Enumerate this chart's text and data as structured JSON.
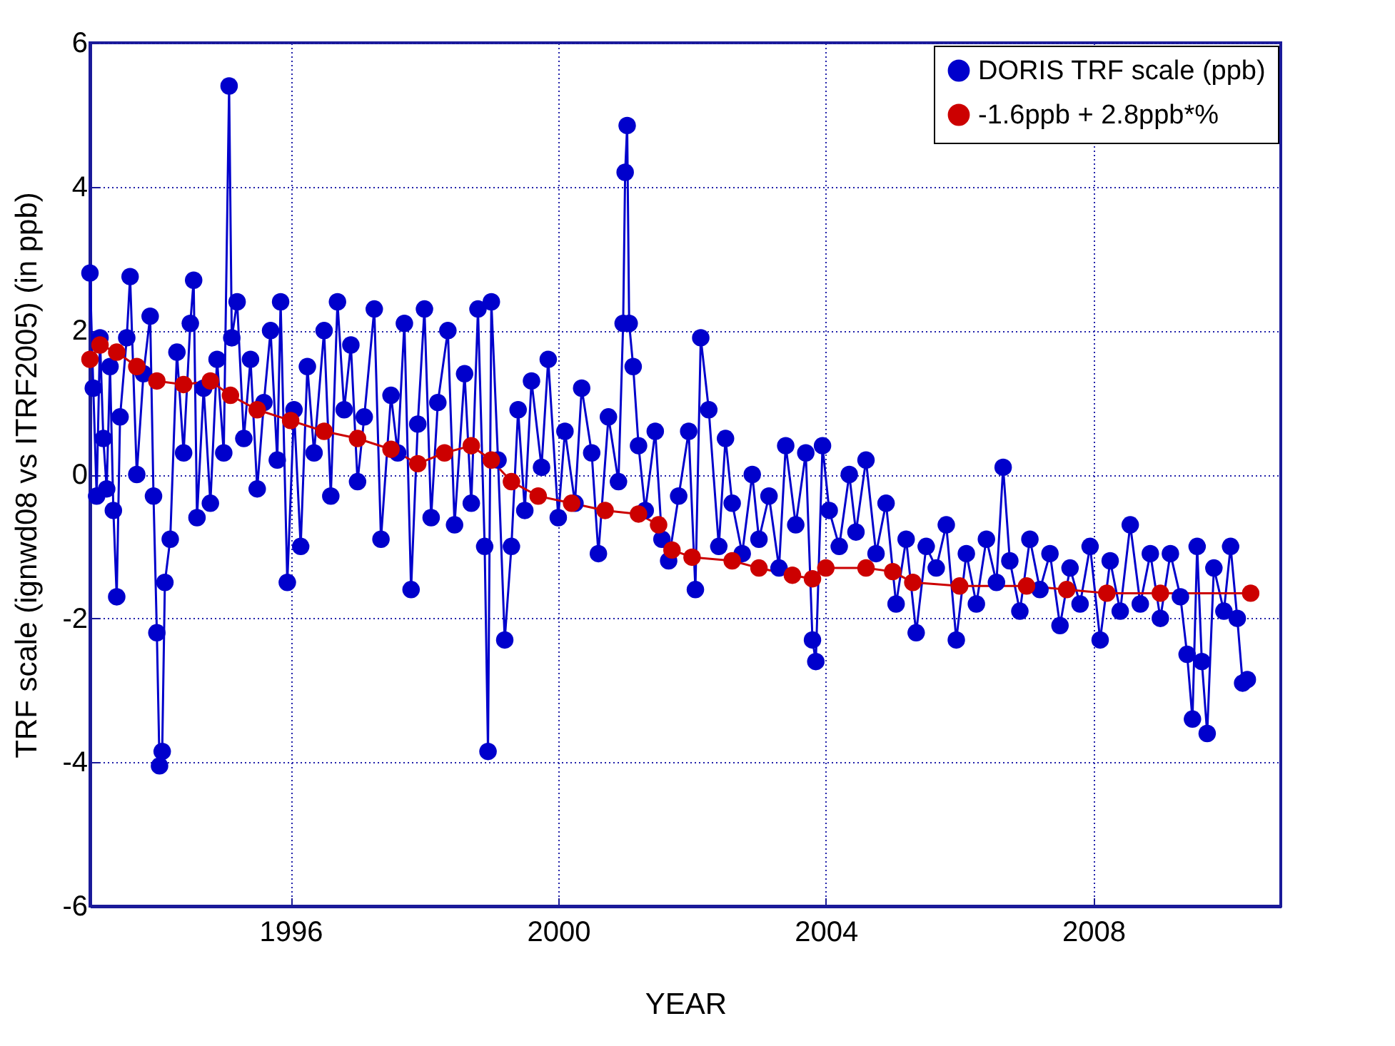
{
  "chart_data": {
    "type": "line",
    "xlabel": "YEAR",
    "ylabel": "TRF scale (ignwd08 vs ITRF2005) (in ppb)",
    "xlim": [
      1993,
      2010.8
    ],
    "xticks": [
      1996,
      2000,
      2004,
      2008
    ],
    "ylim": [
      -6,
      6
    ],
    "yticks": [
      -6,
      -4,
      -2,
      0,
      2,
      4,
      6
    ],
    "grid": true,
    "legend": "top right",
    "marker": "circle",
    "line_style": "solid",
    "series": [
      {
        "name": "DORIS TRF scale (ppb)",
        "color": "#0000cc",
        "x": [
          1993.0,
          1993.05,
          1993.1,
          1993.15,
          1993.2,
          1993.25,
          1993.3,
          1993.35,
          1993.4,
          1993.45,
          1993.55,
          1993.6,
          1993.7,
          1993.8,
          1993.9,
          1993.95,
          1994.0,
          1994.04,
          1994.08,
          1994.12,
          1994.2,
          1994.3,
          1994.4,
          1994.5,
          1994.55,
          1994.6,
          1994.7,
          1994.8,
          1994.9,
          1995.0,
          1995.08,
          1995.12,
          1995.2,
          1995.3,
          1995.4,
          1995.5,
          1995.6,
          1995.7,
          1995.8,
          1995.85,
          1995.95,
          1996.05,
          1996.15,
          1996.25,
          1996.35,
          1996.5,
          1996.6,
          1996.7,
          1996.8,
          1996.9,
          1997.0,
          1997.1,
          1997.25,
          1997.35,
          1997.5,
          1997.6,
          1997.7,
          1997.8,
          1997.9,
          1998.0,
          1998.1,
          1998.2,
          1998.35,
          1998.45,
          1998.6,
          1998.7,
          1998.8,
          1998.9,
          1998.95,
          1999.0,
          1999.1,
          1999.2,
          1999.3,
          1999.4,
          1999.5,
          1999.6,
          1999.75,
          1999.85,
          2000.0,
          2000.1,
          2000.25,
          2000.35,
          2000.5,
          2000.6,
          2000.75,
          2000.9,
          2000.97,
          2001.0,
          2001.03,
          2001.06,
          2001.12,
          2001.2,
          2001.3,
          2001.45,
          2001.55,
          2001.65,
          2001.8,
          2001.95,
          2002.05,
          2002.13,
          2002.25,
          2002.4,
          2002.5,
          2002.6,
          2002.75,
          2002.9,
          2003.0,
          2003.15,
          2003.3,
          2003.4,
          2003.55,
          2003.7,
          2003.8,
          2003.85,
          2003.95,
          2004.05,
          2004.2,
          2004.35,
          2004.45,
          2004.6,
          2004.75,
          2004.9,
          2005.05,
          2005.2,
          2005.35,
          2005.5,
          2005.65,
          2005.8,
          2005.95,
          2006.1,
          2006.25,
          2006.4,
          2006.55,
          2006.65,
          2006.75,
          2006.9,
          2007.05,
          2007.2,
          2007.35,
          2007.5,
          2007.65,
          2007.8,
          2007.95,
          2008.1,
          2008.25,
          2008.4,
          2008.55,
          2008.7,
          2008.85,
          2009.0,
          2009.15,
          2009.3,
          2009.4,
          2009.48,
          2009.55,
          2009.62,
          2009.7,
          2009.8,
          2009.95,
          2010.05,
          2010.15,
          2010.23,
          2010.3
        ],
        "values": [
          2.8,
          1.2,
          -0.3,
          1.9,
          0.5,
          -0.2,
          1.5,
          -0.5,
          -1.7,
          0.8,
          1.9,
          2.75,
          0.0,
          1.4,
          2.2,
          -0.3,
          -2.2,
          -4.05,
          -3.85,
          -1.5,
          -0.9,
          1.7,
          0.3,
          2.1,
          2.7,
          -0.6,
          1.2,
          -0.4,
          1.6,
          0.3,
          5.4,
          1.9,
          2.4,
          0.5,
          1.6,
          -0.2,
          1.0,
          2.0,
          0.2,
          2.4,
          -1.5,
          0.9,
          -1.0,
          1.5,
          0.3,
          2.0,
          -0.3,
          2.4,
          0.9,
          1.8,
          -0.1,
          0.8,
          2.3,
          -0.9,
          1.1,
          0.3,
          2.1,
          -1.6,
          0.7,
          2.3,
          -0.6,
          1.0,
          2.0,
          -0.7,
          1.4,
          -0.4,
          2.3,
          -1.0,
          -3.85,
          2.4,
          0.2,
          -2.3,
          -1.0,
          0.9,
          -0.5,
          1.3,
          0.1,
          1.6,
          -0.6,
          0.6,
          -0.4,
          1.2,
          0.3,
          -1.1,
          0.8,
          -0.1,
          2.1,
          4.2,
          4.85,
          2.1,
          1.5,
          0.4,
          -0.5,
          0.6,
          -0.9,
          -1.2,
          -0.3,
          0.6,
          -1.6,
          1.9,
          0.9,
          -1.0,
          0.5,
          -0.4,
          -1.1,
          0.0,
          -0.9,
          -0.3,
          -1.3,
          0.4,
          -0.7,
          0.3,
          -2.3,
          -2.6,
          0.4,
          -0.5,
          -1.0,
          0.0,
          -0.8,
          0.2,
          -1.1,
          -0.4,
          -1.8,
          -0.9,
          -2.2,
          -1.0,
          -1.3,
          -0.7,
          -2.3,
          -1.1,
          -1.8,
          -0.9,
          -1.5,
          0.1,
          -1.2,
          -1.9,
          -0.9,
          -1.6,
          -1.1,
          -2.1,
          -1.3,
          -1.8,
          -1.0,
          -2.3,
          -1.2,
          -1.9,
          -0.7,
          -1.8,
          -1.1,
          -2.0,
          -1.1,
          -1.7,
          -2.5,
          -3.4,
          -1.0,
          -2.6,
          -3.6,
          -1.3,
          -1.9,
          -1.0,
          -2.0,
          -2.9,
          -2.85
        ]
      },
      {
        "name": "-1.6ppb + 2.8ppb*%",
        "color": "#cc0000",
        "x": [
          1993.0,
          1993.15,
          1993.4,
          1993.7,
          1994.0,
          1994.4,
          1994.8,
          1995.1,
          1995.5,
          1996.0,
          1996.5,
          1997.0,
          1997.5,
          1997.9,
          1998.3,
          1998.7,
          1999.0,
          1999.3,
          1999.7,
          2000.2,
          2000.7,
          2001.2,
          2001.5,
          2001.7,
          2002.0,
          2002.6,
          2003.0,
          2003.5,
          2003.8,
          2004.0,
          2004.6,
          2005.0,
          2005.3,
          2006.0,
          2007.0,
          2007.6,
          2008.2,
          2009.0,
          2010.35
        ],
        "values": [
          1.6,
          1.8,
          1.7,
          1.5,
          1.3,
          1.25,
          1.3,
          1.1,
          0.9,
          0.75,
          0.6,
          0.5,
          0.35,
          0.15,
          0.3,
          0.4,
          0.2,
          -0.1,
          -0.3,
          -0.4,
          -0.5,
          -0.55,
          -0.7,
          -1.05,
          -1.15,
          -1.2,
          -1.3,
          -1.4,
          -1.45,
          -1.3,
          -1.3,
          -1.35,
          -1.5,
          -1.55,
          -1.55,
          -1.6,
          -1.65,
          -1.65,
          -1.65
        ]
      }
    ]
  }
}
